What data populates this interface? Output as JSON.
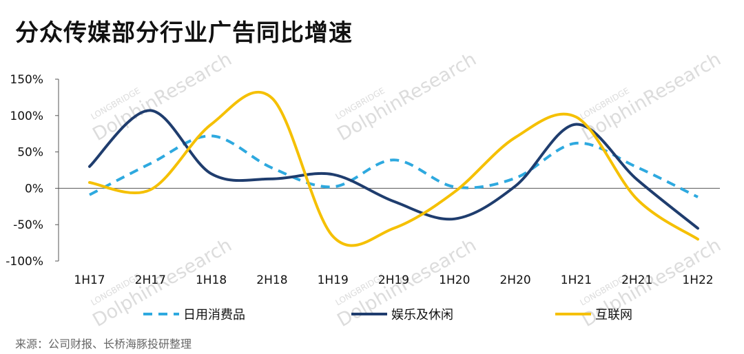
{
  "title": "分众传媒部分行业广告同比增速",
  "source": "来源：公司财报、长桥海豚投研整理",
  "watermark": {
    "brand": "LONGBRIDGE",
    "name": "DolphinResearch"
  },
  "chart_data": {
    "type": "line",
    "title": "分众传媒部分行业广告同比增速",
    "x": [
      "1H17",
      "2H17",
      "1H18",
      "2H18",
      "1H19",
      "2H19",
      "1H20",
      "2H20",
      "1H21",
      "2H21",
      "1H22"
    ],
    "ylim": [
      -100,
      150
    ],
    "yticks": [
      150,
      100,
      50,
      0,
      -50,
      -100
    ],
    "ytick_suffix": "%",
    "legend_position": "bottom",
    "series": [
      {
        "name": "日用消费品",
        "color": "#2ea9df",
        "style": "dashed",
        "values": [
          -9,
          34,
          72,
          28,
          2,
          39,
          2,
          14,
          62,
          29,
          -12
        ]
      },
      {
        "name": "娱乐及休闲",
        "color": "#1f3d6e",
        "style": "solid",
        "values": [
          30,
          107,
          20,
          13,
          19,
          -18,
          -42,
          3,
          88,
          12,
          -55
        ]
      },
      {
        "name": "互联网",
        "color": "#f5c000",
        "style": "solid",
        "values": [
          8,
          -2,
          88,
          124,
          -66,
          -55,
          -5,
          70,
          98,
          -15,
          -70
        ]
      }
    ]
  }
}
